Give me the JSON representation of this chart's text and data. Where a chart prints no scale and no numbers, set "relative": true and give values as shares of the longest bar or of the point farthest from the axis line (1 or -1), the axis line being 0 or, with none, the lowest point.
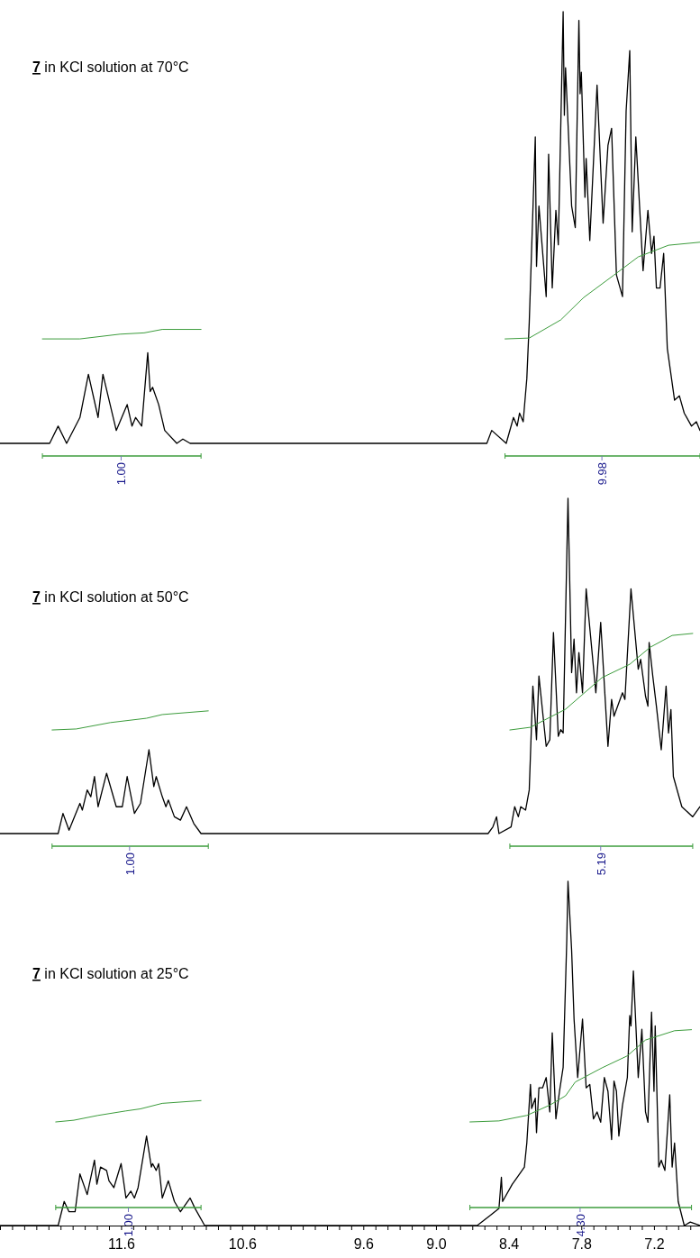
{
  "chart_data": [
    {
      "type": "line",
      "title": "7 in KCl solution at 70°C",
      "relative": true,
      "xlim": [
        12.6,
        6.82
      ],
      "tick_labels": false,
      "series": [
        {
          "color": "#000000",
          "x": [
            12.6,
            12.19,
            12.12,
            12.05,
            11.94,
            11.87,
            11.79,
            11.75,
            11.64,
            11.55,
            11.51,
            11.48,
            11.43,
            11.38,
            11.36,
            11.34,
            11.29,
            11.24,
            11.14,
            11.09,
            11.03,
            8.58,
            8.54,
            8.42,
            8.36,
            8.33,
            8.31,
            8.28,
            8.25,
            8.23,
            8.18,
            8.17,
            8.15,
            8.09,
            8.07,
            8.04,
            8.01,
            7.99,
            7.95,
            7.94,
            7.93,
            7.88,
            7.85,
            7.82,
            7.81,
            7.8,
            7.77,
            7.76,
            7.73,
            7.67,
            7.62,
            7.58,
            7.55,
            7.51,
            7.46,
            7.43,
            7.4,
            7.38,
            7.35,
            7.29,
            7.25,
            7.22,
            7.2,
            7.18,
            7.15,
            7.12,
            7.09,
            7.03,
            6.99,
            6.95,
            6.89,
            6.85,
            6.82
          ],
          "values": [
            0,
            0,
            0.04,
            0,
            0.06,
            0.16,
            0.06,
            0.16,
            0.03,
            0.09,
            0.04,
            0.06,
            0.04,
            0.21,
            0.12,
            0.13,
            0.09,
            0.03,
            0,
            0.01,
            0,
            0,
            0.03,
            0,
            0.06,
            0.04,
            0.07,
            0.05,
            0.15,
            0.28,
            0.71,
            0.41,
            0.55,
            0.34,
            0.67,
            0.36,
            0.54,
            0.46,
            1,
            0.76,
            0.87,
            0.55,
            0.5,
            0.98,
            0.81,
            0.86,
            0.57,
            0.66,
            0.47,
            0.83,
            0.51,
            0.69,
            0.73,
            0.39,
            0.34,
            0.77,
            0.91,
            0.49,
            0.71,
            0.4,
            0.54,
            0.44,
            0.48,
            0.36,
            0.36,
            0.44,
            0.22,
            0.1,
            0.11,
            0.07,
            0.04,
            0.05,
            0.03
          ]
        },
        {
          "color": "#3c9c3c",
          "x": [
            12.25,
            11.94,
            11.61,
            11.41,
            11.26,
            10.94
          ],
          "values": [
            0.242,
            0.242,
            0.253,
            0.256,
            0.264,
            0.264
          ]
        },
        {
          "color": "#3c9c3c",
          "x": [
            8.43,
            8.23,
            7.97,
            7.78,
            7.53,
            7.33,
            7.08,
            6.82
          ],
          "values": [
            0.242,
            0.244,
            0.286,
            0.338,
            0.39,
            0.432,
            0.459,
            0.466
          ]
        }
      ],
      "annotations": [
        {
          "text": "1.00",
          "x": 11.6
        },
        {
          "text": "9.98",
          "x": 7.63
        }
      ]
    },
    {
      "type": "line",
      "title": "7 in KCl solution at 50°C",
      "relative": true,
      "xlim": [
        12.6,
        6.82
      ],
      "tick_labels": false,
      "series": [
        {
          "color": "#000000",
          "x": [
            12.6,
            12.12,
            12.08,
            12.03,
            11.94,
            11.92,
            11.88,
            11.85,
            11.82,
            11.79,
            11.72,
            11.64,
            11.59,
            11.55,
            11.49,
            11.44,
            11.37,
            11.33,
            11.31,
            11.26,
            11.23,
            11.21,
            11.16,
            11.11,
            11.06,
            11.0,
            10.94,
            8.57,
            8.53,
            8.5,
            8.48,
            8.38,
            8.35,
            8.32,
            8.3,
            8.26,
            8.23,
            8.2,
            8.17,
            8.15,
            8.09,
            8.06,
            8.03,
            7.99,
            7.97,
            7.95,
            7.91,
            7.88,
            7.86,
            7.84,
            7.82,
            7.79,
            7.76,
            7.68,
            7.64,
            7.58,
            7.55,
            7.53,
            7.46,
            7.44,
            7.39,
            7.36,
            7.33,
            7.31,
            7.27,
            7.25,
            7.24,
            7.21,
            7.18,
            7.14,
            7.1,
            7.08,
            7.06,
            7.04,
            6.97,
            6.88,
            6.82
          ],
          "values": [
            0,
            0,
            0.06,
            0.01,
            0.09,
            0.07,
            0.13,
            0.11,
            0.17,
            0.08,
            0.18,
            0.08,
            0.08,
            0.17,
            0.06,
            0.09,
            0.25,
            0.14,
            0.17,
            0.11,
            0.08,
            0.1,
            0.05,
            0.04,
            0.08,
            0.03,
            0,
            0,
            0.02,
            0.05,
            0,
            0.02,
            0.08,
            0.05,
            0.08,
            0.07,
            0.13,
            0.44,
            0.28,
            0.47,
            0.26,
            0.28,
            0.6,
            0.29,
            0.31,
            0.3,
            1,
            0.48,
            0.58,
            0.42,
            0.54,
            0.42,
            0.73,
            0.42,
            0.63,
            0.26,
            0.4,
            0.35,
            0.42,
            0.4,
            0.73,
            0.61,
            0.49,
            0.52,
            0.41,
            0.38,
            0.57,
            0.47,
            0.38,
            0.25,
            0.44,
            0.3,
            0.37,
            0.17,
            0.08,
            0.05,
            0.08
          ]
        },
        {
          "color": "#3c9c3c",
          "x": [
            12.17,
            11.97,
            11.69,
            11.39,
            11.26,
            10.88
          ],
          "values": [
            0.309,
            0.312,
            0.331,
            0.344,
            0.355,
            0.366
          ]
        },
        {
          "color": "#3c9c3c",
          "x": [
            8.39,
            8.22,
            7.93,
            7.63,
            7.4,
            7.23,
            7.05,
            6.88
          ],
          "values": [
            0.309,
            0.317,
            0.371,
            0.465,
            0.505,
            0.556,
            0.591,
            0.597
          ]
        }
      ],
      "annotations": [
        {
          "text": "1.00",
          "x": 11.53
        },
        {
          "text": "5.19",
          "x": 7.64
        }
      ]
    },
    {
      "type": "line",
      "title": "7 in KCl solution at 25°C",
      "relative": true,
      "xlim": [
        12.6,
        6.82
      ],
      "tick_labels": "x",
      "xticks": [
        {
          "value": 12.5,
          "label": null
        },
        {
          "value": 12.4,
          "label": null
        },
        {
          "value": 12.3,
          "label": null
        },
        {
          "value": 12.2,
          "label": null
        },
        {
          "value": 12.1,
          "label": null
        },
        {
          "value": 12.0,
          "label": null
        },
        {
          "value": 11.9,
          "label": null
        },
        {
          "value": 11.8,
          "label": null
        },
        {
          "value": 11.7,
          "label": null
        },
        11.6,
        {
          "value": 11.5,
          "label": null
        },
        {
          "value": 11.4,
          "label": null
        },
        {
          "value": 11.3,
          "label": null
        },
        {
          "value": 11.2,
          "label": null
        },
        {
          "value": 11.1,
          "label": null
        },
        {
          "value": 11.0,
          "label": null
        },
        {
          "value": 10.9,
          "label": null
        },
        {
          "value": 10.8,
          "label": null
        },
        {
          "value": 10.7,
          "label": null
        },
        10.6,
        {
          "value": 10.5,
          "label": null
        },
        {
          "value": 10.4,
          "label": null
        },
        {
          "value": 10.3,
          "label": null
        },
        {
          "value": 10.2,
          "label": null
        },
        {
          "value": 10.1,
          "label": null
        },
        {
          "value": 10.0,
          "label": null
        },
        {
          "value": 9.9,
          "label": null
        },
        {
          "value": 9.8,
          "label": null
        },
        {
          "value": 9.7,
          "label": null
        },
        9.6,
        {
          "value": 9.5,
          "label": null
        },
        {
          "value": 9.4,
          "label": null
        },
        {
          "value": 9.3,
          "label": null
        },
        {
          "value": 9.2,
          "label": null
        },
        {
          "value": 9.1,
          "label": null
        },
        {
          "value": 9,
          "label": "9.0"
        },
        {
          "value": 8.9,
          "label": null
        },
        {
          "value": 8.8,
          "label": null
        },
        {
          "value": 8.7,
          "label": null
        },
        {
          "value": 8.6,
          "label": null
        },
        {
          "value": 8.5,
          "label": null
        },
        8.4,
        {
          "value": 8.3,
          "label": null
        },
        {
          "value": 8.2,
          "label": null
        },
        {
          "value": 8.1,
          "label": null
        },
        {
          "value": 8.0,
          "label": null
        },
        {
          "value": 7.9,
          "label": null
        },
        7.8,
        {
          "value": 7.7,
          "label": null
        },
        {
          "value": 7.6,
          "label": null
        },
        {
          "value": 7.5,
          "label": null
        },
        {
          "value": 7.4,
          "label": null
        },
        {
          "value": 7.3,
          "label": null
        },
        7.2,
        {
          "value": 7.1,
          "label": null
        },
        {
          "value": 7.0,
          "label": null
        },
        {
          "value": 6.9,
          "label": null
        }
      ],
      "series": [
        {
          "color": "#000000",
          "x": [
            12.6,
            12.12,
            12.07,
            12.03,
            11.98,
            11.94,
            11.88,
            11.82,
            11.8,
            11.77,
            11.72,
            11.7,
            11.66,
            11.6,
            11.56,
            11.52,
            11.49,
            11.46,
            11.39,
            11.35,
            11.34,
            11.31,
            11.29,
            11.26,
            11.21,
            11.16,
            11.11,
            11.03,
            10.99,
            10.91,
            8.66,
            8.55,
            8.48,
            8.46,
            8.45,
            8.37,
            8.33,
            8.27,
            8.25,
            8.22,
            8.21,
            8.18,
            8.17,
            8.15,
            8.12,
            8.09,
            8.06,
            8.04,
            8.01,
            7.98,
            7.95,
            7.92,
            7.91,
            7.88,
            7.86,
            7.83,
            7.79,
            7.76,
            7.73,
            7.7,
            7.67,
            7.64,
            7.61,
            7.58,
            7.55,
            7.53,
            7.51,
            7.49,
            7.46,
            7.42,
            7.4,
            7.39,
            7.37,
            7.33,
            7.3,
            7.27,
            7.25,
            7.22,
            7.2,
            7.19,
            7.16,
            7.14,
            7.11,
            7.07,
            7.05,
            7.03,
            7.0,
            6.95,
            6.9,
            6.82
          ],
          "values": [
            0,
            0,
            0.07,
            0.04,
            0.04,
            0.15,
            0.09,
            0.19,
            0.12,
            0.17,
            0.16,
            0.13,
            0.11,
            0.18,
            0.08,
            0.1,
            0.08,
            0.11,
            0.26,
            0.17,
            0.18,
            0.16,
            0.18,
            0.08,
            0.13,
            0.07,
            0.04,
            0.08,
            0.05,
            0,
            0,
            0.03,
            0.05,
            0.14,
            0.07,
            0.12,
            0.14,
            0.17,
            0.24,
            0.41,
            0.34,
            0.37,
            0.27,
            0.4,
            0.4,
            0.43,
            0.33,
            0.56,
            0.31,
            0.39,
            0.46,
            0.83,
            1,
            0.8,
            0.6,
            0.43,
            0.6,
            0.4,
            0.41,
            0.31,
            0.33,
            0.3,
            0.43,
            0.39,
            0.25,
            0.42,
            0.39,
            0.26,
            0.35,
            0.43,
            0.61,
            0.58,
            0.74,
            0.43,
            0.57,
            0.33,
            0.3,
            0.62,
            0.39,
            0.58,
            0.17,
            0.19,
            0.16,
            0.38,
            0.17,
            0.24,
            0.07,
            0,
            0.01,
            0
          ]
        },
        {
          "color": "#3c9c3c",
          "x": [
            12.14,
            11.99,
            11.79,
            11.56,
            11.44,
            11.26,
            10.94
          ],
          "values": [
            0.301,
            0.306,
            0.32,
            0.333,
            0.339,
            0.355,
            0.363
          ]
        },
        {
          "color": "#3c9c3c",
          "x": [
            8.72,
            8.48,
            8.25,
            8.06,
            7.93,
            7.85,
            7.63,
            7.42,
            7.27,
            7.03,
            6.89
          ],
          "values": [
            0.301,
            0.304,
            0.32,
            0.35,
            0.377,
            0.417,
            0.458,
            0.493,
            0.539,
            0.566,
            0.569
          ]
        }
      ],
      "annotations": [
        {
          "text": "1.00",
          "x": 11.54
        },
        {
          "text": "4.30",
          "x": 7.81
        }
      ]
    }
  ]
}
